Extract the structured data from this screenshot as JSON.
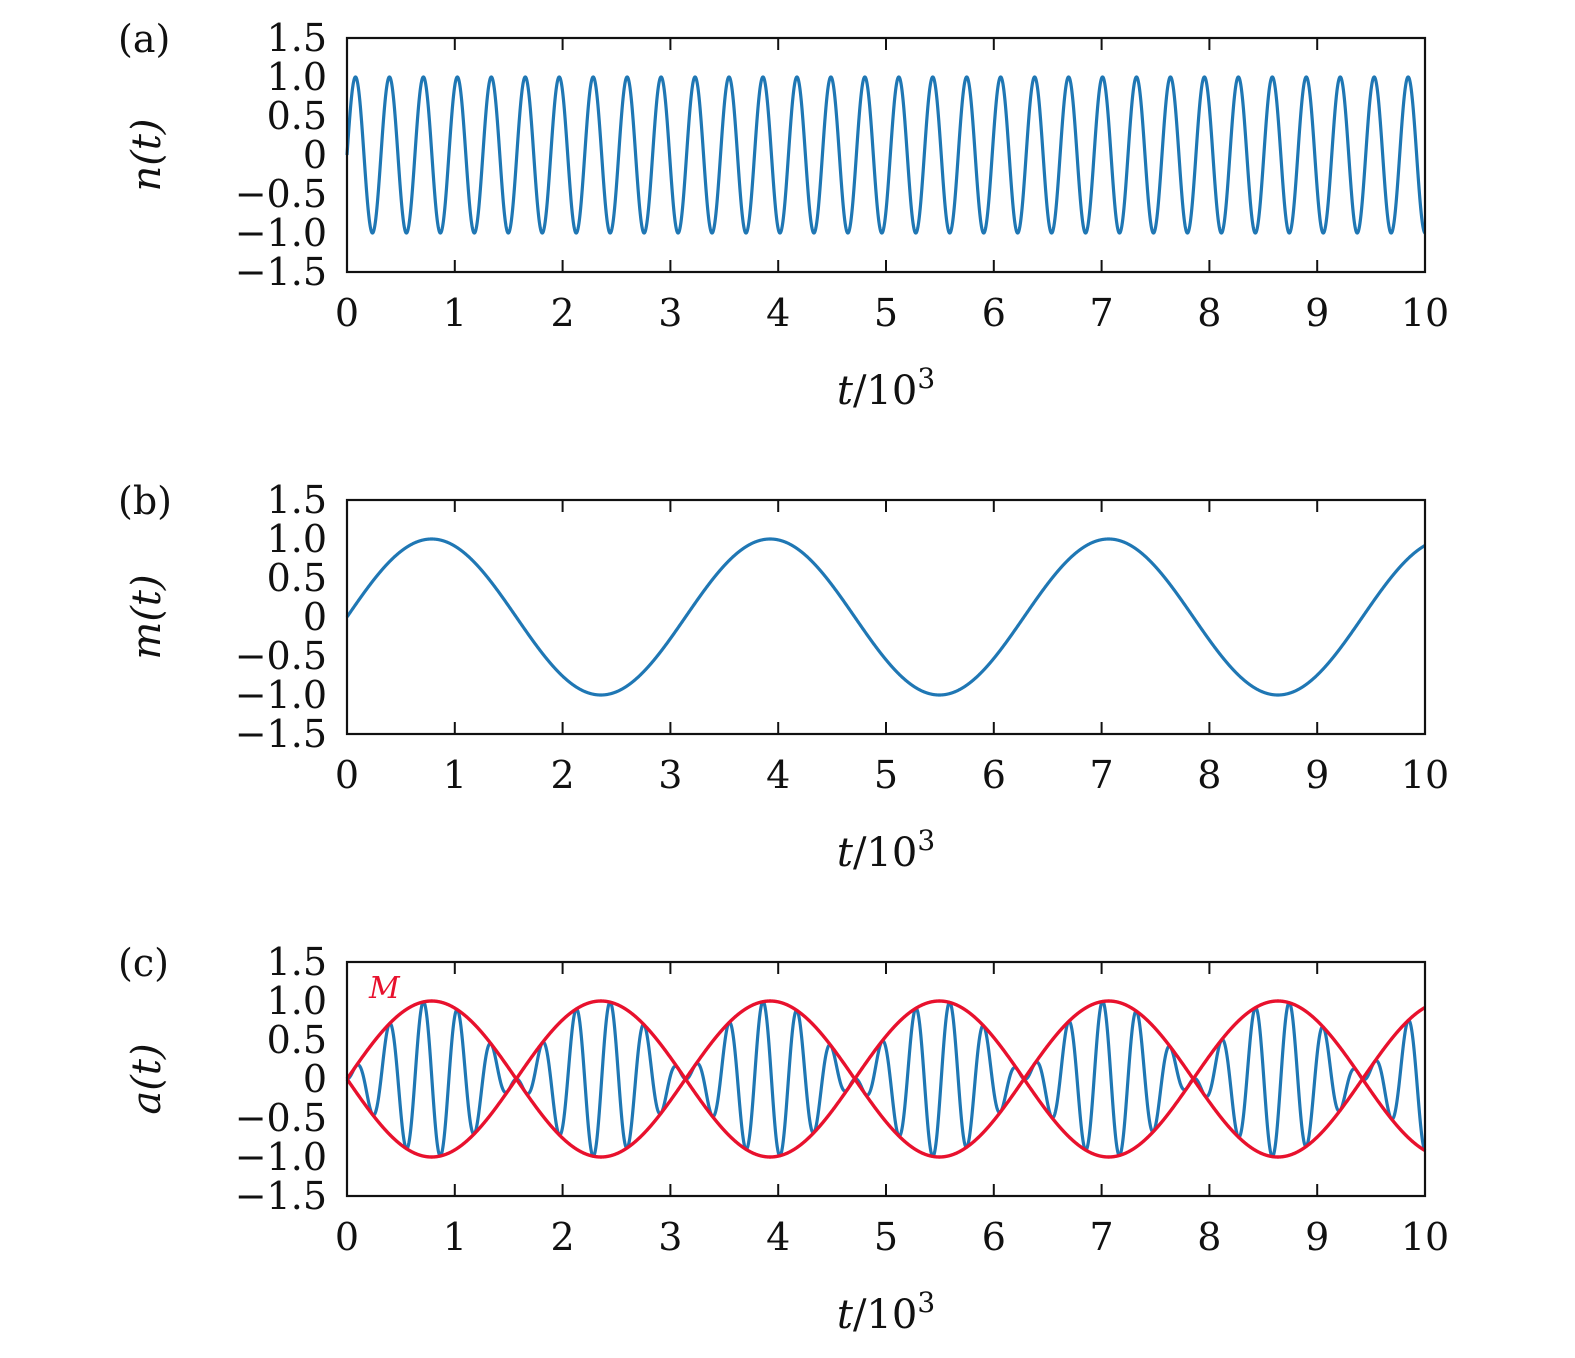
{
  "chart_data": [
    {
      "type": "line",
      "panel_label": "(a)",
      "xlabel_var": "t",
      "xlabel_rest": "/10",
      "xlabel_sup": "3",
      "ylabel": "n(t)",
      "xlim": [
        0,
        10
      ],
      "ylim": [
        -1.5,
        1.5
      ],
      "xticks": [
        "0",
        "1",
        "2",
        "3",
        "4",
        "5",
        "6",
        "7",
        "8",
        "9",
        "10"
      ],
      "yticks": [
        "1.5",
        "1.0",
        "0.5",
        "0",
        "−0.5",
        "−1.0",
        "−1.5"
      ],
      "ytick_values": [
        1.5,
        1.0,
        0.5,
        0,
        -0.5,
        -1.0,
        -1.5
      ],
      "series": [
        {
          "function": "sin(2*pi*x/0.315)",
          "period": 0.315,
          "amplitude": 1.0,
          "color": "#1f77b4"
        }
      ]
    },
    {
      "type": "line",
      "panel_label": "(b)",
      "xlabel_var": "t",
      "xlabel_rest": "/10",
      "xlabel_sup": "3",
      "ylabel": "m(t)",
      "xlim": [
        0,
        10
      ],
      "ylim": [
        -1.5,
        1.5
      ],
      "xticks": [
        "0",
        "1",
        "2",
        "3",
        "4",
        "5",
        "6",
        "7",
        "8",
        "9",
        "10"
      ],
      "yticks": [
        "1.5",
        "1.0",
        "0.5",
        "0",
        "−0.5",
        "−1.0",
        "−1.5"
      ],
      "ytick_values": [
        1.5,
        1.0,
        0.5,
        0,
        -0.5,
        -1.0,
        -1.5
      ],
      "series": [
        {
          "function": "sin(2*pi*x/3.14)",
          "period": 3.14,
          "amplitude": 1.0,
          "color": "#1f77b4"
        }
      ]
    },
    {
      "type": "line",
      "panel_label": "(c)",
      "xlabel_var": "t",
      "xlabel_rest": "/10",
      "xlabel_sup": "3",
      "ylabel": "a(t)",
      "xlim": [
        0,
        10
      ],
      "ylim": [
        -1.5,
        1.5
      ],
      "xticks": [
        "0",
        "1",
        "2",
        "3",
        "4",
        "5",
        "6",
        "7",
        "8",
        "9",
        "10"
      ],
      "yticks": [
        "1.5",
        "1.0",
        "0.5",
        "0",
        "−0.5",
        "−1.0",
        "−1.5"
      ],
      "ytick_values": [
        1.5,
        1.0,
        0.5,
        0,
        -0.5,
        -1.0,
        -1.5
      ],
      "series": [
        {
          "function": "sin(2*pi*x/3.14)*sin(2*pi*x/0.315)",
          "carrier_period": 0.315,
          "envelope_period": 3.14,
          "color": "#1f77b4"
        },
        {
          "name": "M",
          "function": "+sin(2*pi*x/3.14)",
          "period": 3.14,
          "color": "#e8112d"
        },
        {
          "function": "-sin(2*pi*x/3.14)",
          "period": 3.14,
          "color": "#e8112d"
        }
      ],
      "annotation": {
        "text": "M",
        "color": "#e8112d"
      }
    }
  ]
}
